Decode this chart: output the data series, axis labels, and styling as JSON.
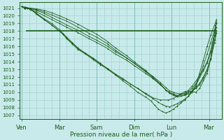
{
  "bg_color": "#c8eaea",
  "grid_major_color": "#aed4d4",
  "grid_minor_color": "#c0dfdf",
  "line_color": "#1a5c1a",
  "ylabel_text": "Pression niveau de la mer( hPa )",
  "xtick_labels": [
    "Ven",
    "Mar",
    "Sam",
    "Dim",
    "Lun",
    "Mar"
  ],
  "xtick_positions": [
    0,
    1,
    2,
    3,
    4,
    5
  ],
  "ylim": [
    1006.5,
    1021.8
  ],
  "yticks": [
    1007,
    1008,
    1009,
    1010,
    1011,
    1012,
    1013,
    1014,
    1015,
    1016,
    1017,
    1018,
    1019,
    1020,
    1021
  ],
  "xlim": [
    -0.05,
    5.35
  ],
  "figsize": [
    3.2,
    2.0
  ],
  "dpi": 100,
  "lines": [
    {
      "x": [
        0.0,
        0.08,
        0.15,
        0.25,
        0.4,
        0.6,
        0.8,
        1.0,
        1.1,
        1.2,
        1.35,
        1.5,
        1.7,
        1.9,
        2.1,
        2.3,
        2.5,
        2.7,
        2.9,
        3.1,
        3.3,
        3.5,
        3.7,
        3.9,
        4.05,
        4.15,
        4.25,
        4.35,
        4.45,
        4.55,
        4.65,
        4.75,
        4.85,
        4.95,
        5.05,
        5.15,
        5.2
      ],
      "y": [
        1021.2,
        1021.0,
        1021.0,
        1020.8,
        1020.2,
        1019.5,
        1018.8,
        1018.0,
        1017.6,
        1017.0,
        1016.3,
        1015.6,
        1015.0,
        1014.3,
        1013.6,
        1013.0,
        1012.3,
        1011.7,
        1011.1,
        1010.5,
        1009.9,
        1009.3,
        1009.0,
        1009.0,
        1009.2,
        1009.5,
        1009.8,
        1010.1,
        1010.2,
        1010.1,
        1010.0,
        1010.5,
        1011.5,
        1012.5,
        1014.5,
        1017.5,
        1019.2
      ]
    },
    {
      "x": [
        0.0,
        0.08,
        0.15,
        0.25,
        0.4,
        0.6,
        0.8,
        1.0,
        1.1,
        1.2,
        1.35,
        1.5,
        1.7,
        1.9,
        2.1,
        2.3,
        2.5,
        2.7,
        2.9,
        3.1,
        3.3,
        3.5,
        3.65,
        3.75,
        3.85,
        3.95,
        4.05,
        4.15,
        4.25,
        4.35,
        4.45,
        4.55,
        4.65,
        4.75,
        4.85,
        4.95,
        5.05,
        5.15,
        5.2
      ],
      "y": [
        1021.2,
        1021.0,
        1021.0,
        1020.8,
        1020.2,
        1019.5,
        1018.8,
        1018.0,
        1017.6,
        1017.1,
        1016.4,
        1015.7,
        1015.1,
        1014.4,
        1013.7,
        1013.1,
        1012.4,
        1011.8,
        1011.1,
        1010.5,
        1009.8,
        1009.2,
        1008.7,
        1008.4,
        1008.2,
        1008.1,
        1008.3,
        1008.5,
        1008.8,
        1009.1,
        1009.5,
        1010.0,
        1010.8,
        1012.0,
        1013.5,
        1015.0,
        1016.5,
        1018.2,
        1019.0
      ]
    },
    {
      "x": [
        0.0,
        0.08,
        0.15,
        0.25,
        0.4,
        0.6,
        0.8,
        1.0,
        1.1,
        1.2,
        1.35,
        1.5,
        1.7,
        1.9,
        2.1,
        2.3,
        2.5,
        2.7,
        2.9,
        3.1,
        3.3,
        3.45,
        3.55,
        3.65,
        3.75,
        3.85,
        3.95,
        4.05,
        4.15,
        4.25,
        4.35,
        4.45,
        4.55,
        4.65,
        4.75,
        4.85,
        4.95,
        5.05,
        5.15,
        5.2
      ],
      "y": [
        1021.2,
        1021.0,
        1021.0,
        1020.8,
        1020.3,
        1019.6,
        1019.0,
        1018.2,
        1017.7,
        1017.2,
        1016.5,
        1015.8,
        1015.1,
        1014.5,
        1013.8,
        1013.0,
        1012.3,
        1011.5,
        1010.8,
        1010.0,
        1009.4,
        1008.9,
        1008.3,
        1007.8,
        1007.5,
        1007.3,
        1007.5,
        1007.8,
        1008.2,
        1008.6,
        1009.0,
        1009.5,
        1010.2,
        1011.0,
        1012.5,
        1014.2,
        1016.0,
        1017.5,
        1018.8,
        1019.5
      ]
    },
    {
      "x": [
        0.0,
        0.1,
        0.2,
        0.4,
        0.6,
        0.8,
        1.0,
        1.2,
        1.5,
        1.8,
        2.0,
        2.3,
        2.5,
        2.8,
        3.0,
        3.3,
        3.5,
        3.7,
        3.85,
        3.95,
        4.05,
        4.15,
        4.25,
        4.35,
        4.45,
        4.55,
        4.65,
        4.75,
        4.85,
        4.95,
        5.05,
        5.15,
        5.2
      ],
      "y": [
        1021.2,
        1021.0,
        1020.9,
        1020.5,
        1020.0,
        1019.5,
        1019.0,
        1018.5,
        1017.8,
        1017.0,
        1016.5,
        1015.7,
        1015.0,
        1014.2,
        1013.5,
        1012.5,
        1011.8,
        1011.0,
        1010.3,
        1010.0,
        1009.8,
        1009.6,
        1009.5,
        1009.6,
        1009.8,
        1010.2,
        1010.6,
        1011.2,
        1012.0,
        1013.0,
        1014.5,
        1016.5,
        1017.8
      ]
    },
    {
      "x": [
        0.0,
        0.1,
        0.2,
        0.4,
        0.6,
        0.8,
        1.0,
        1.2,
        1.5,
        1.8,
        2.0,
        2.3,
        2.5,
        2.8,
        3.0,
        3.3,
        3.5,
        3.7,
        3.85,
        3.95,
        4.05,
        4.2,
        4.35,
        4.5,
        4.65,
        4.75,
        4.85,
        4.95,
        5.05,
        5.15,
        5.2
      ],
      "y": [
        1021.2,
        1021.0,
        1021.0,
        1020.7,
        1020.3,
        1019.8,
        1019.3,
        1018.8,
        1018.1,
        1017.3,
        1016.8,
        1016.0,
        1015.3,
        1014.5,
        1013.8,
        1012.8,
        1012.1,
        1011.3,
        1010.6,
        1010.2,
        1010.0,
        1009.8,
        1009.8,
        1010.0,
        1010.5,
        1011.0,
        1011.8,
        1012.8,
        1014.3,
        1016.8,
        1018.0
      ]
    },
    {
      "x": [
        0.0,
        0.1,
        0.2,
        0.4,
        0.6,
        0.8,
        1.0,
        1.2,
        1.5,
        1.8,
        2.0,
        2.3,
        2.5,
        2.8,
        3.0,
        3.3,
        3.5,
        3.7,
        3.85,
        3.95,
        4.05,
        4.15,
        4.25,
        4.4,
        4.55,
        4.7,
        4.85,
        4.95,
        5.05,
        5.15,
        5.2
      ],
      "y": [
        1021.2,
        1021.1,
        1021.0,
        1020.8,
        1020.5,
        1020.1,
        1019.7,
        1019.3,
        1018.5,
        1017.7,
        1017.2,
        1016.3,
        1015.5,
        1014.5,
        1013.8,
        1012.7,
        1011.9,
        1011.0,
        1010.3,
        1009.9,
        1009.6,
        1009.4,
        1009.5,
        1009.8,
        1010.5,
        1011.5,
        1012.8,
        1013.8,
        1015.2,
        1017.5,
        1018.5
      ]
    },
    {
      "x": [
        0.0,
        0.1,
        0.2,
        0.4,
        0.6,
        0.8,
        1.0,
        1.2,
        1.5,
        1.8,
        2.0,
        2.3,
        2.5,
        2.8,
        3.0,
        3.3,
        3.5,
        3.7,
        3.85,
        3.95,
        4.05,
        4.15,
        4.25,
        4.4,
        4.55,
        4.7,
        4.85,
        4.95,
        5.05,
        5.15,
        5.2
      ],
      "y": [
        1021.2,
        1021.1,
        1021.0,
        1020.9,
        1020.7,
        1020.4,
        1020.0,
        1019.6,
        1018.9,
        1018.1,
        1017.6,
        1016.6,
        1015.8,
        1014.8,
        1014.0,
        1012.9,
        1012.0,
        1011.1,
        1010.3,
        1009.9,
        1009.7,
        1009.5,
        1009.7,
        1010.0,
        1010.8,
        1011.8,
        1013.0,
        1014.0,
        1015.5,
        1017.8,
        1019.0
      ]
    }
  ],
  "flat_line": {
    "x": [
      0.13,
      4.92
    ],
    "y": [
      1018.0,
      1018.0
    ]
  },
  "flat_line2": {
    "x": [
      4.92,
      5.2
    ],
    "y": [
      1018.0,
      1018.0
    ]
  }
}
